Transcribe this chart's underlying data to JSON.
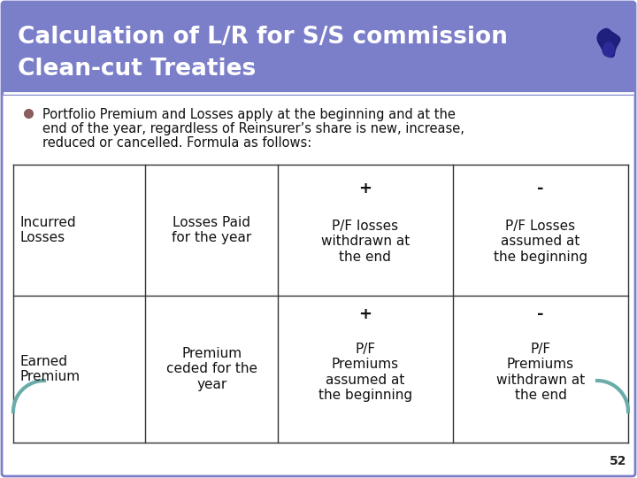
{
  "title_line1": "Calculation of L/R for S/S commission",
  "title_line2": "Clean-cut Treaties",
  "title_bg_color": "#7B7EC8",
  "title_text_color": "#FFFFFF",
  "body_bg_color": "#FFFFFF",
  "slide_border_color": "#7B7EC8",
  "bullet_color": "#8B5E5E",
  "table_border_color": "#333333",
  "row1_col1": "Incurred\nLosses",
  "row1_col2": "Losses Paid\nfor the year",
  "row1_col3_top": "+",
  "row1_col3_bot": "P/F losses\nwithdrawn at\nthe end",
  "row1_col4_top": "-",
  "row1_col4_bot": "P/F Losses\nassumed at\nthe beginning",
  "row2_col1": "Earned\nPremium",
  "row2_col2": "Premium\nceded for the\nyear",
  "row2_col3_top": "+",
  "row2_col3_bot": "P/F\nPremiums\nassumed at\nthe beginning",
  "row2_col4_top": "-",
  "row2_col4_bot": "P/F\nPremiums\nwithdrawn at\nthe end",
  "bullet_line1": "Portfolio Premium and Losses apply at the beginning and at the",
  "bullet_line2": "end of the year, regardless of Reinsurer’s share is new, increase,",
  "bullet_line3": "reduced or cancelled. Formula as follows:",
  "page_number": "52",
  "teal_color": "#6AACAA",
  "logo_color": "#1a1a7a"
}
